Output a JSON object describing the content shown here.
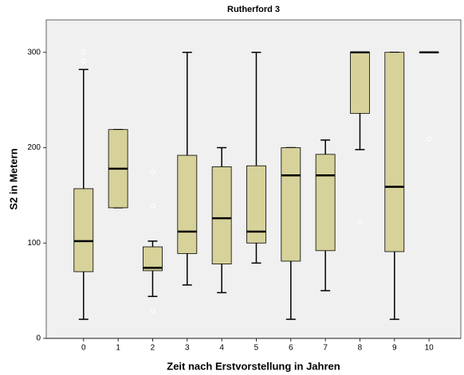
{
  "chart_data": {
    "type": "boxplot",
    "title": "Rutherford 3",
    "x_label": "Zeit nach Erstvorstellung in Jahren",
    "y_label": "S2 in Metern",
    "categories": [
      "0",
      "1",
      "2",
      "3",
      "4",
      "5",
      "6",
      "7",
      "8",
      "9",
      "10"
    ],
    "color": "#d6d29a",
    "boxes": [
      {
        "low": 20,
        "q1": 70,
        "median": 102,
        "q3": 157,
        "high": 282,
        "outliers": [
          291,
          300
        ]
      },
      {
        "low": 137,
        "q1": 137,
        "median": 178,
        "q3": 219,
        "high": 219,
        "outliers": []
      },
      {
        "low": 44,
        "q1": 71,
        "median": 74,
        "q3": 96,
        "high": 102,
        "outliers": [
          29,
          139,
          174
        ]
      },
      {
        "low": 56,
        "q1": 89,
        "median": 112,
        "q3": 192,
        "high": 300,
        "outliers": []
      },
      {
        "low": 48,
        "q1": 78,
        "median": 126,
        "q3": 180,
        "high": 200,
        "outliers": []
      },
      {
        "low": 79,
        "q1": 100,
        "median": 112,
        "q3": 181,
        "high": 300,
        "outliers": []
      },
      {
        "low": 20,
        "q1": 81,
        "median": 171,
        "q3": 200,
        "high": 200,
        "outliers": []
      },
      {
        "low": 50,
        "q1": 92,
        "median": 171,
        "q3": 193,
        "high": 208,
        "outliers": []
      },
      {
        "low": 198,
        "q1": 236,
        "median": 300,
        "q3": 300,
        "high": 300,
        "outliers": [
          122
        ]
      },
      {
        "low": 20,
        "q1": 91,
        "median": 159,
        "q3": 300,
        "high": 300,
        "outliers": []
      },
      {
        "low": 300,
        "q1": 300,
        "median": 300,
        "q3": 300,
        "high": 300,
        "outliers": [
          209
        ]
      }
    ],
    "ylim": [
      0,
      334
    ],
    "yticks": [
      0,
      100,
      200,
      300
    ]
  }
}
